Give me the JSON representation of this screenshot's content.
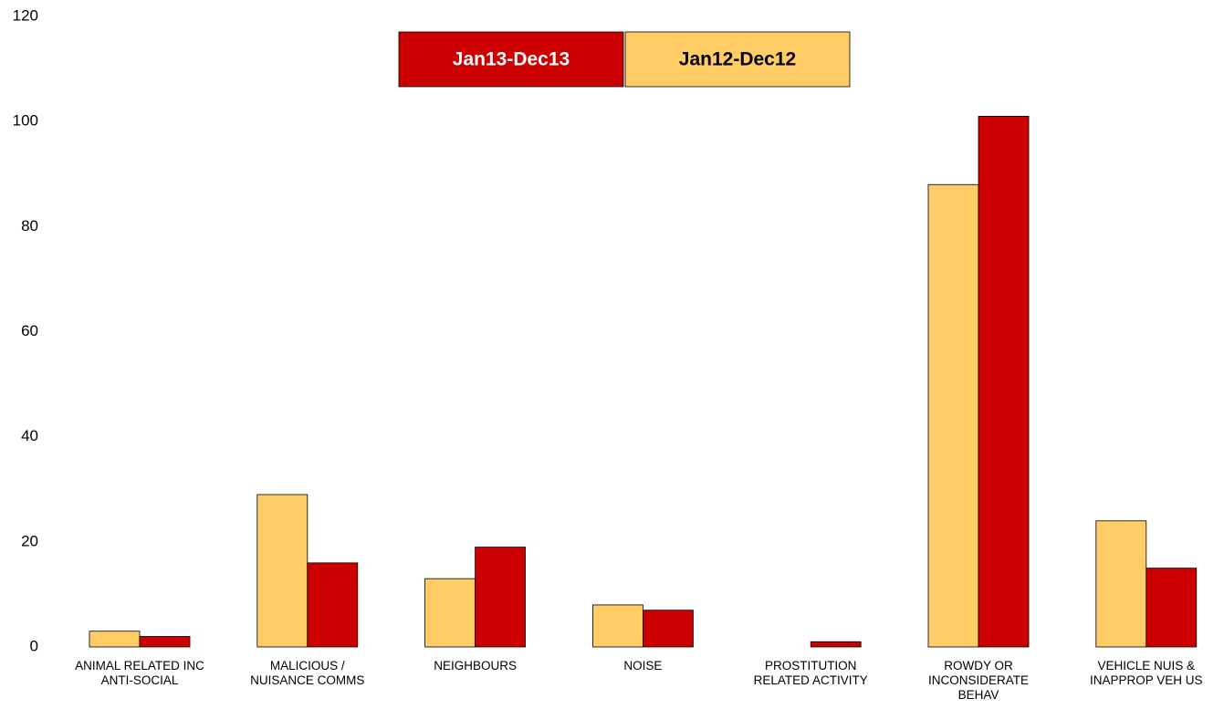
{
  "chart_data": {
    "type": "bar",
    "categories": [
      "ANIMAL RELATED INC\nANTI-SOCIAL",
      "MALICIOUS /\nNUISANCE COMMS",
      "NEIGHBOURS",
      "NOISE",
      "PROSTITUTION\nRELATED ACTIVITY",
      "ROWDY OR\nINCONSIDERATE\nBEHAV",
      "VEHICLE NUIS &\nINAPPROP VEH US"
    ],
    "series": [
      {
        "name": "Jan12-Dec12",
        "color": "#ffcc66",
        "values": [
          3,
          29,
          13,
          8,
          0,
          88,
          24
        ]
      },
      {
        "name": "Jan13-Dec13",
        "color": "#cc0000",
        "values": [
          2,
          16,
          19,
          7,
          1,
          101,
          15
        ]
      }
    ],
    "ylim": [
      0,
      120
    ],
    "yticks": [
      0,
      20,
      40,
      60,
      80,
      100,
      120
    ],
    "grid": false
  }
}
